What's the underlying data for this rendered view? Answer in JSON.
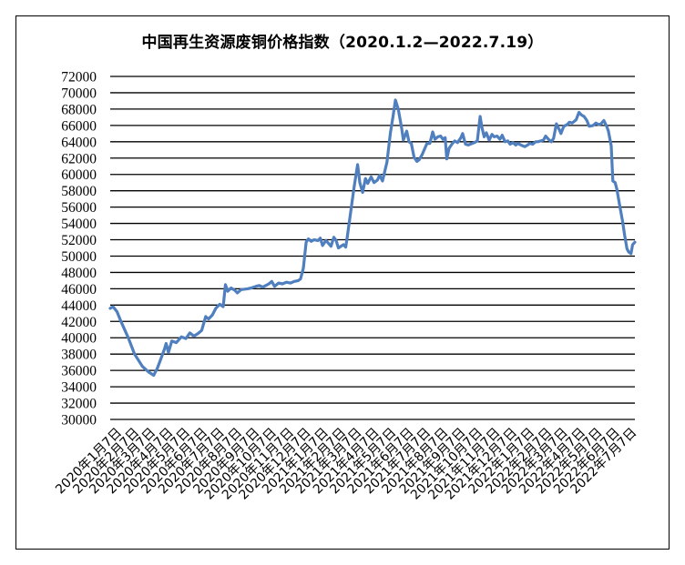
{
  "chart_data": {
    "type": "line",
    "title": "中国再生资源废铜价格指数（2020.1.2—2022.7.19）",
    "xlabel": "",
    "ylabel": "",
    "ylim": [
      30000,
      72000
    ],
    "y_ticks": [
      30000,
      32000,
      34000,
      36000,
      38000,
      40000,
      42000,
      44000,
      46000,
      48000,
      50000,
      52000,
      54000,
      56000,
      58000,
      60000,
      62000,
      64000,
      66000,
      68000,
      70000,
      72000
    ],
    "y_tick_labels": [
      "30000",
      "32000",
      "34000",
      "36000",
      "38000",
      "40000",
      "42000",
      "44000",
      "46000",
      "48000",
      "50000",
      "52000",
      "54000",
      "56000",
      "58000",
      "60000",
      "62000",
      "64000",
      "66000",
      "68000",
      "70000",
      "72000"
    ],
    "x_tick_labels": [
      "2020年1月7日",
      "2020年2月7日",
      "2020年3月7日",
      "2020年4月7日",
      "2020年5月7日",
      "2020年6月7日",
      "2020年7月7日",
      "2020年8月7日",
      "2020年9月7日",
      "2020年10月7日",
      "2020年11月7日",
      "2020年12月7日",
      "2021年1月7日",
      "2021年2月7日",
      "2021年3月7日",
      "2021年4月7日",
      "2021年5月7日",
      "2021年6月7日",
      "2021年7月7日",
      "2021年8月7日",
      "2021年9月7日",
      "2021年10月7日",
      "2021年11月7日",
      "2021年12月7日",
      "2022年1月7日",
      "2022年2月7日",
      "2022年3月7日",
      "2022年4月7日",
      "2022年5月7日",
      "2022年6月7日",
      "2022年7月7日"
    ],
    "grid": true,
    "legend": "none",
    "line_color": "#4F7FBE",
    "series": [
      {
        "points": [
          [
            "2020-01-02",
            43600
          ],
          [
            "2020-01-07",
            43800
          ],
          [
            "2020-01-14",
            43200
          ],
          [
            "2020-01-21",
            42000
          ],
          [
            "2020-02-03",
            40000
          ],
          [
            "2020-02-14",
            38000
          ],
          [
            "2020-02-28",
            36500
          ],
          [
            "2020-03-10",
            35800
          ],
          [
            "2020-03-19",
            35400
          ],
          [
            "2020-03-25",
            36200
          ],
          [
            "2020-03-31",
            37300
          ],
          [
            "2020-04-07",
            38600
          ],
          [
            "2020-04-10",
            39300
          ],
          [
            "2020-04-14",
            38200
          ],
          [
            "2020-04-20",
            39600
          ],
          [
            "2020-04-28",
            39400
          ],
          [
            "2020-05-07",
            40100
          ],
          [
            "2020-05-15",
            39900
          ],
          [
            "2020-05-22",
            40600
          ],
          [
            "2020-05-29",
            40200
          ],
          [
            "2020-06-05",
            40500
          ],
          [
            "2020-06-12",
            40900
          ],
          [
            "2020-06-19",
            42600
          ],
          [
            "2020-06-24",
            42300
          ],
          [
            "2020-07-01",
            42800
          ],
          [
            "2020-07-07",
            43600
          ],
          [
            "2020-07-14",
            44100
          ],
          [
            "2020-07-20",
            43800
          ],
          [
            "2020-07-24",
            46500
          ],
          [
            "2020-07-28",
            45700
          ],
          [
            "2020-08-03",
            46100
          ],
          [
            "2020-08-10",
            45800
          ],
          [
            "2020-08-14",
            45500
          ],
          [
            "2020-08-21",
            45900
          ],
          [
            "2020-09-01",
            46000
          ],
          [
            "2020-09-08",
            46100
          ],
          [
            "2020-09-16",
            46300
          ],
          [
            "2020-09-22",
            46400
          ],
          [
            "2020-09-28",
            46200
          ],
          [
            "2020-10-09",
            46600
          ],
          [
            "2020-10-14",
            46900
          ],
          [
            "2020-10-19",
            46300
          ],
          [
            "2020-10-26",
            46700
          ],
          [
            "2020-11-02",
            46600
          ],
          [
            "2020-11-09",
            46800
          ],
          [
            "2020-11-16",
            46700
          ],
          [
            "2020-11-23",
            46900
          ],
          [
            "2020-11-30",
            47000
          ],
          [
            "2020-12-04",
            47200
          ],
          [
            "2020-12-09",
            48500
          ],
          [
            "2020-12-14",
            51700
          ],
          [
            "2020-12-18",
            52100
          ],
          [
            "2020-12-23",
            51800
          ],
          [
            "2020-12-28",
            52000
          ],
          [
            "2021-01-04",
            51900
          ],
          [
            "2021-01-08",
            52200
          ],
          [
            "2021-01-12",
            51300
          ],
          [
            "2021-01-18",
            51900
          ],
          [
            "2021-01-22",
            51600
          ],
          [
            "2021-01-27",
            51200
          ],
          [
            "2021-02-01",
            52300
          ],
          [
            "2021-02-05",
            51900
          ],
          [
            "2021-02-09",
            51000
          ],
          [
            "2021-02-18",
            51400
          ],
          [
            "2021-02-22",
            51100
          ],
          [
            "2021-02-24",
            52000
          ],
          [
            "2021-03-02",
            55000
          ],
          [
            "2021-03-09",
            58500
          ],
          [
            "2021-03-15",
            61200
          ],
          [
            "2021-03-19",
            59000
          ],
          [
            "2021-03-24",
            57800
          ],
          [
            "2021-03-29",
            59500
          ],
          [
            "2021-04-02",
            58900
          ],
          [
            "2021-04-08",
            59700
          ],
          [
            "2021-04-13",
            59000
          ],
          [
            "2021-04-19",
            59300
          ],
          [
            "2021-04-23",
            59900
          ],
          [
            "2021-04-28",
            59200
          ],
          [
            "2021-05-06",
            61500
          ],
          [
            "2021-05-12",
            65000
          ],
          [
            "2021-05-17",
            67200
          ],
          [
            "2021-05-21",
            69100
          ],
          [
            "2021-05-26",
            68000
          ],
          [
            "2021-06-01",
            65700
          ],
          [
            "2021-06-04",
            64200
          ],
          [
            "2021-06-10",
            65300
          ],
          [
            "2021-06-14",
            64000
          ],
          [
            "2021-06-18",
            63800
          ],
          [
            "2021-06-23",
            62100
          ],
          [
            "2021-06-28",
            61600
          ],
          [
            "2021-07-02",
            61800
          ],
          [
            "2021-07-07",
            62400
          ],
          [
            "2021-07-12",
            63200
          ],
          [
            "2021-07-16",
            63800
          ],
          [
            "2021-07-21",
            63800
          ],
          [
            "2021-07-26",
            65200
          ],
          [
            "2021-07-30",
            64300
          ],
          [
            "2021-08-04",
            64600
          ],
          [
            "2021-08-09",
            64700
          ],
          [
            "2021-08-13",
            64300
          ],
          [
            "2021-08-17",
            64500
          ],
          [
            "2021-08-20",
            61900
          ],
          [
            "2021-08-24",
            63200
          ],
          [
            "2021-08-30",
            63800
          ],
          [
            "2021-09-03",
            64100
          ],
          [
            "2021-09-08",
            63900
          ],
          [
            "2021-09-14",
            64500
          ],
          [
            "2021-09-17",
            65000
          ],
          [
            "2021-09-22",
            63700
          ],
          [
            "2021-09-27",
            63600
          ],
          [
            "2021-10-08",
            63900
          ],
          [
            "2021-10-13",
            64100
          ],
          [
            "2021-10-18",
            67100
          ],
          [
            "2021-10-21",
            65800
          ],
          [
            "2021-10-25",
            64600
          ],
          [
            "2021-10-29",
            65100
          ],
          [
            "2021-11-03",
            64200
          ],
          [
            "2021-11-08",
            64900
          ],
          [
            "2021-11-12",
            64600
          ],
          [
            "2021-11-17",
            64700
          ],
          [
            "2021-11-22",
            64300
          ],
          [
            "2021-11-26",
            64800
          ],
          [
            "2021-12-01",
            64000
          ],
          [
            "2021-12-06",
            64100
          ],
          [
            "2021-12-10",
            63700
          ],
          [
            "2021-12-15",
            63900
          ],
          [
            "2021-12-20",
            63600
          ],
          [
            "2021-12-24",
            63800
          ],
          [
            "2021-12-29",
            63600
          ],
          [
            "2022-01-05",
            63400
          ],
          [
            "2022-01-10",
            63600
          ],
          [
            "2022-01-14",
            63800
          ],
          [
            "2022-01-19",
            63700
          ],
          [
            "2022-01-24",
            64000
          ],
          [
            "2022-01-28",
            64000
          ],
          [
            "2022-02-07",
            64200
          ],
          [
            "2022-02-11",
            64700
          ],
          [
            "2022-02-16",
            64300
          ],
          [
            "2022-02-21",
            64000
          ],
          [
            "2022-02-25",
            64400
          ],
          [
            "2022-03-02",
            66200
          ],
          [
            "2022-03-07",
            65500
          ],
          [
            "2022-03-10",
            65000
          ],
          [
            "2022-03-15",
            65900
          ],
          [
            "2022-03-21",
            66100
          ],
          [
            "2022-03-25",
            66400
          ],
          [
            "2022-03-30",
            66300
          ],
          [
            "2022-04-06",
            66700
          ],
          [
            "2022-04-11",
            67600
          ],
          [
            "2022-04-15",
            67300
          ],
          [
            "2022-04-20",
            67100
          ],
          [
            "2022-04-25",
            66600
          ],
          [
            "2022-04-29",
            65900
          ],
          [
            "2022-05-06",
            66000
          ],
          [
            "2022-05-11",
            66300
          ],
          [
            "2022-05-16",
            66100
          ],
          [
            "2022-05-20",
            66200
          ],
          [
            "2022-05-25",
            66600
          ],
          [
            "2022-05-30",
            65900
          ],
          [
            "2022-06-02",
            65300
          ],
          [
            "2022-06-07",
            63500
          ],
          [
            "2022-06-10",
            59200
          ],
          [
            "2022-06-14",
            59000
          ],
          [
            "2022-06-17",
            58200
          ],
          [
            "2022-06-22",
            56200
          ],
          [
            "2022-06-27",
            54300
          ],
          [
            "2022-07-01",
            52500
          ],
          [
            "2022-07-05",
            50900
          ],
          [
            "2022-07-08",
            50500
          ],
          [
            "2022-07-12",
            50300
          ],
          [
            "2022-07-15",
            51400
          ],
          [
            "2022-07-19",
            51700
          ]
        ]
      }
    ]
  }
}
